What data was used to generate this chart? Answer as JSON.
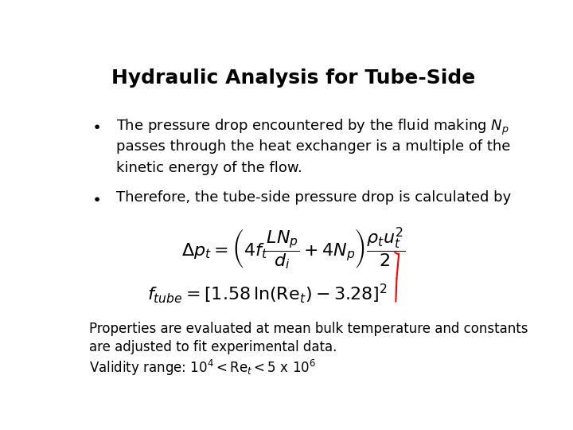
{
  "title": "Hydraulic Analysis for Tube-Side",
  "title_fontsize": 18,
  "title_fontweight": "bold",
  "bg_color": "#ffffff",
  "text_color": "#000000",
  "bullet1_line1": "The pressure drop encountered by the fluid making $N_p$",
  "bullet1_line2": "passes through the heat exchanger is a multiple of the",
  "bullet1_line3": "kinetic energy of the flow.",
  "bullet2_line1": "Therefore, the tube-side pressure drop is calculated by",
  "footer1": "Properties are evaluated at mean bulk temperature and constants",
  "footer2": "are adjusted to fit experimental data.",
  "body_fontsize": 13,
  "eq_fontsize": 16,
  "footer_fontsize": 12
}
